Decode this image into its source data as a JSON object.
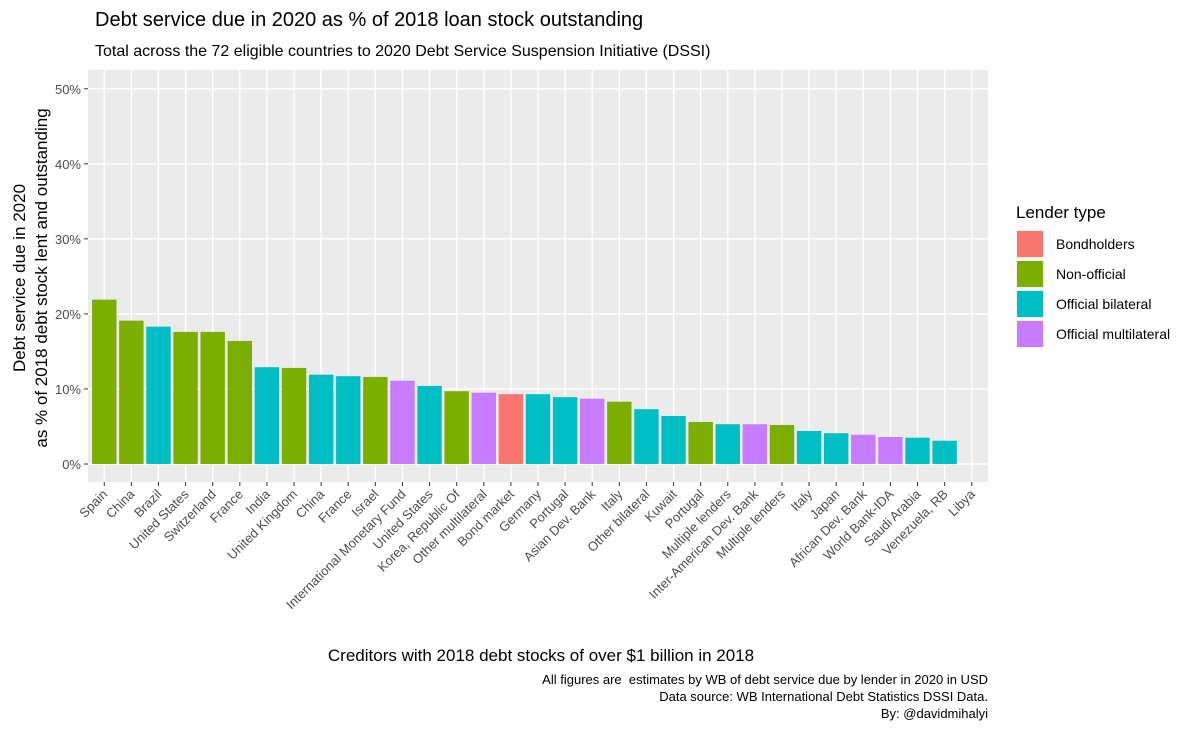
{
  "chart_data": {
    "type": "bar",
    "title": "Debt service due in 2020 as % of 2018 loan stock outstanding",
    "subtitle": "Total across the 72 eligible countries to 2020 Debt Service Suspension Initiative (DSSI)",
    "ylabel": [
      "Debt service due in 2020",
      "as % of 2018 debt stock lent and outstanding"
    ],
    "xlabel": "Creditors with 2018 debt stocks of over $1 billion in 2018",
    "caption": [
      "All figures are  estimates by WB of debt service due by lender in 2020 in USD",
      "Data source: WB International Debt Statistics DSSI Data.",
      "By: @davidmihalyi"
    ],
    "legend_title": "Lender type",
    "categories": [
      "Spain",
      "China",
      "Brazil",
      "United States",
      "Switzerland",
      "France",
      "India",
      "United Kingdom",
      "China",
      "France",
      "Israel",
      "International Monetary Fund",
      "United States",
      "Korea, Republic Of",
      "Other multilateral",
      "Bond market",
      "Germany",
      "Portugal",
      "Asian Dev. Bank",
      "Italy",
      "Other bilateral",
      "Kuwait",
      "Portugal",
      "Multiple lenders",
      "Inter-American Dev. Bank",
      "Multiple lenders",
      "Italy",
      "Japan",
      "African Dev. Bank",
      "World Bank-IDA",
      "Saudi Arabia",
      "Venezuela, RB",
      "Libya"
    ],
    "series": [
      {
        "name": "Bondholders",
        "color": "#F8766D",
        "values": [
          null,
          null,
          null,
          null,
          null,
          null,
          null,
          null,
          null,
          null,
          null,
          null,
          null,
          null,
          null,
          9.3,
          null,
          null,
          null,
          null,
          null,
          null,
          null,
          null,
          null,
          null,
          null,
          null,
          null,
          null,
          null,
          null,
          null
        ]
      },
      {
        "name": "Non-official",
        "color": "#7CAE00",
        "values": [
          21.9,
          19.1,
          null,
          17.6,
          17.6,
          16.4,
          null,
          12.8,
          null,
          null,
          11.6,
          null,
          null,
          9.7,
          null,
          null,
          null,
          null,
          null,
          8.3,
          null,
          null,
          5.6,
          null,
          null,
          5.2,
          null,
          null,
          null,
          null,
          null,
          null,
          null
        ]
      },
      {
        "name": "Official bilateral",
        "color": "#00BFC4",
        "values": [
          null,
          null,
          18.3,
          null,
          null,
          null,
          12.9,
          null,
          11.9,
          11.7,
          null,
          null,
          10.4,
          null,
          null,
          null,
          9.3,
          8.9,
          null,
          null,
          7.3,
          6.4,
          null,
          5.3,
          null,
          null,
          4.4,
          4.1,
          null,
          null,
          3.5,
          3.1,
          0
        ]
      },
      {
        "name": "Official multilateral",
        "color": "#C77CFF",
        "values": [
          null,
          null,
          null,
          null,
          null,
          null,
          null,
          null,
          null,
          null,
          null,
          11.1,
          null,
          null,
          9.5,
          null,
          null,
          null,
          8.7,
          null,
          null,
          null,
          null,
          null,
          5.3,
          null,
          null,
          null,
          3.9,
          3.6,
          null,
          null,
          null
        ]
      }
    ],
    "ylim": [
      -2.4,
      52.5
    ],
    "yticks": [
      {
        "value": 0,
        "label": "0%"
      },
      {
        "value": 10,
        "label": "10%"
      },
      {
        "value": 20,
        "label": "20%"
      },
      {
        "value": 30,
        "label": "30%"
      },
      {
        "value": 40,
        "label": "40%"
      },
      {
        "value": 50,
        "label": "50%"
      }
    ],
    "grid": true
  }
}
